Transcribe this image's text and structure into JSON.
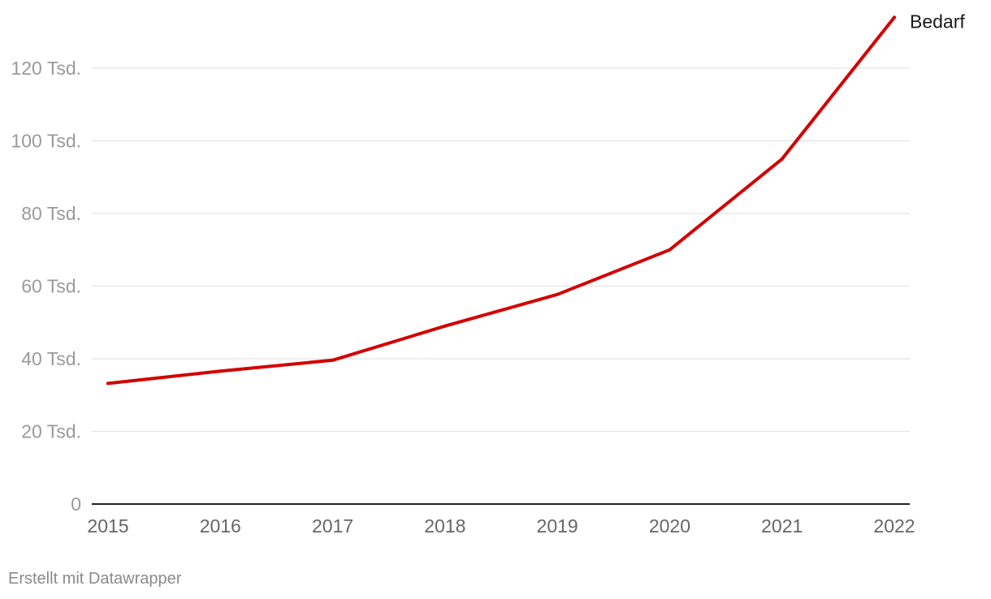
{
  "chart_data": {
    "type": "line",
    "x": [
      "2015",
      "2016",
      "2017",
      "2018",
      "2019",
      "2020",
      "2021",
      "2022"
    ],
    "series": [
      {
        "name": "Bedarf",
        "values": [
          33200,
          36600,
          39600,
          49000,
          57700,
          70000,
          95000,
          134000
        ],
        "color": "#d40000"
      }
    ],
    "ylim": [
      0,
      120000
    ],
    "yticks": [
      0,
      20000,
      40000,
      60000,
      80000,
      100000,
      120000
    ],
    "ytick_labels": [
      "0",
      "20 Tsd.",
      "40 Tsd.",
      "60 Tsd.",
      "80 Tsd.",
      "100 Tsd.",
      "120 Tsd."
    ],
    "grid": true,
    "title": "",
    "xlabel": "",
    "ylabel": ""
  },
  "footer": {
    "credit": "Erstellt mit Datawrapper"
  }
}
